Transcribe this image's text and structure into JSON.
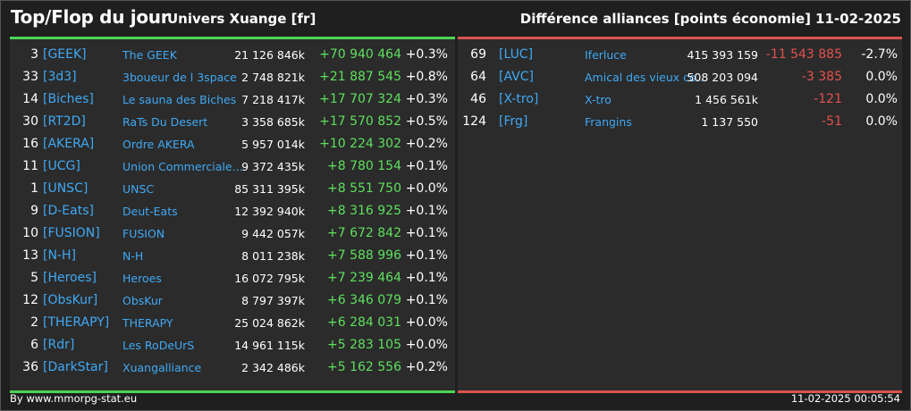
{
  "header": {
    "title": "Top/Flop du jour",
    "universe": "Univers Xuange [fr]",
    "category": "Différence alliances [points économie]",
    "date": "11-02-2025"
  },
  "colors": {
    "top_accent": "#4cd454",
    "flop_accent": "#d9534f",
    "tag_color": "#3fa9f5",
    "positive": "#5ee05e",
    "negative": "#e5514d"
  },
  "top": [
    {
      "rank": "3",
      "tag": "[GEEK]",
      "name": "The GEEK",
      "points": "21 126 846k",
      "diff": "+70 940 464",
      "pct": "+0.3%"
    },
    {
      "rank": "33",
      "tag": "[3d3]",
      "name": "3boueur de l 3space",
      "points": "2 748 821k",
      "diff": "+21 887 545",
      "pct": "+0.8%"
    },
    {
      "rank": "14",
      "tag": "[Biches]",
      "name": "Le sauna des Biches",
      "points": "7 218 417k",
      "diff": "+17 707 324",
      "pct": "+0.3%"
    },
    {
      "rank": "30",
      "tag": "[RT2D]",
      "name": "RaTs Du Desert",
      "points": "3 358 685k",
      "diff": "+17 570 852",
      "pct": "+0.5%"
    },
    {
      "rank": "16",
      "tag": "[AKERA]",
      "name": "Ordre AKERA",
      "points": "5 957 014k",
      "diff": "+10 224 302",
      "pct": "+0.2%"
    },
    {
      "rank": "11",
      "tag": "[UCG]",
      "name": "Union Commerciale…",
      "points": "9 372 435k",
      "diff": "+8 780 154",
      "pct": "+0.1%"
    },
    {
      "rank": "1",
      "tag": "[UNSC]",
      "name": "UNSC",
      "points": "85 311 395k",
      "diff": "+8 551 750",
      "pct": "+0.0%"
    },
    {
      "rank": "9",
      "tag": "[D-Eats]",
      "name": "Deut-Eats",
      "points": "12 392 940k",
      "diff": "+8 316 925",
      "pct": "+0.1%"
    },
    {
      "rank": "10",
      "tag": "[FUSION]",
      "name": "FUSION",
      "points": "9 442 057k",
      "diff": "+7 672 842",
      "pct": "+0.1%"
    },
    {
      "rank": "13",
      "tag": "[N-H]",
      "name": "N-H",
      "points": "8 011 238k",
      "diff": "+7 588 996",
      "pct": "+0.1%"
    },
    {
      "rank": "5",
      "tag": "[Heroes]",
      "name": "Heroes",
      "points": "16 072 795k",
      "diff": "+7 239 464",
      "pct": "+0.1%"
    },
    {
      "rank": "12",
      "tag": "[ObsKur]",
      "name": "ObsKur",
      "points": "8 797 397k",
      "diff": "+6 346 079",
      "pct": "+0.1%"
    },
    {
      "rank": "2",
      "tag": "[THERAPY]",
      "name": "THERAPY",
      "points": "25 024 862k",
      "diff": "+6 284 031",
      "pct": "+0.0%"
    },
    {
      "rank": "6",
      "tag": "[Rdr]",
      "name": "Les RoDeUrS",
      "points": "14 961 115k",
      "diff": "+5 283 105",
      "pct": "+0.0%"
    },
    {
      "rank": "36",
      "tag": "[DarkStar]",
      "name": "Xuangalliance",
      "points": "2 342 486k",
      "diff": "+5 162 556",
      "pct": "+0.2%"
    }
  ],
  "flop": [
    {
      "rank": "69",
      "tag": "[LUC]",
      "name": "Iferluce",
      "points": "415 393 159",
      "diff": "-11 543 885",
      "pct": "-2.7%"
    },
    {
      "rank": "64",
      "tag": "[AVC]",
      "name": "Amical des vieux co…",
      "points": "508 203 094",
      "diff": "-3 385",
      "pct": "0.0%"
    },
    {
      "rank": "46",
      "tag": "[X-tro]",
      "name": "X-tro",
      "points": "1 456 561k",
      "diff": "-121",
      "pct": "0.0%"
    },
    {
      "rank": "124",
      "tag": "[Frg]",
      "name": "Frangins",
      "points": "1 137 550",
      "diff": "-51",
      "pct": "0.0%"
    }
  ],
  "footer": {
    "source": "By www.mmorpg-stat.eu",
    "timestamp": "11-02-2025 00:05:54"
  }
}
